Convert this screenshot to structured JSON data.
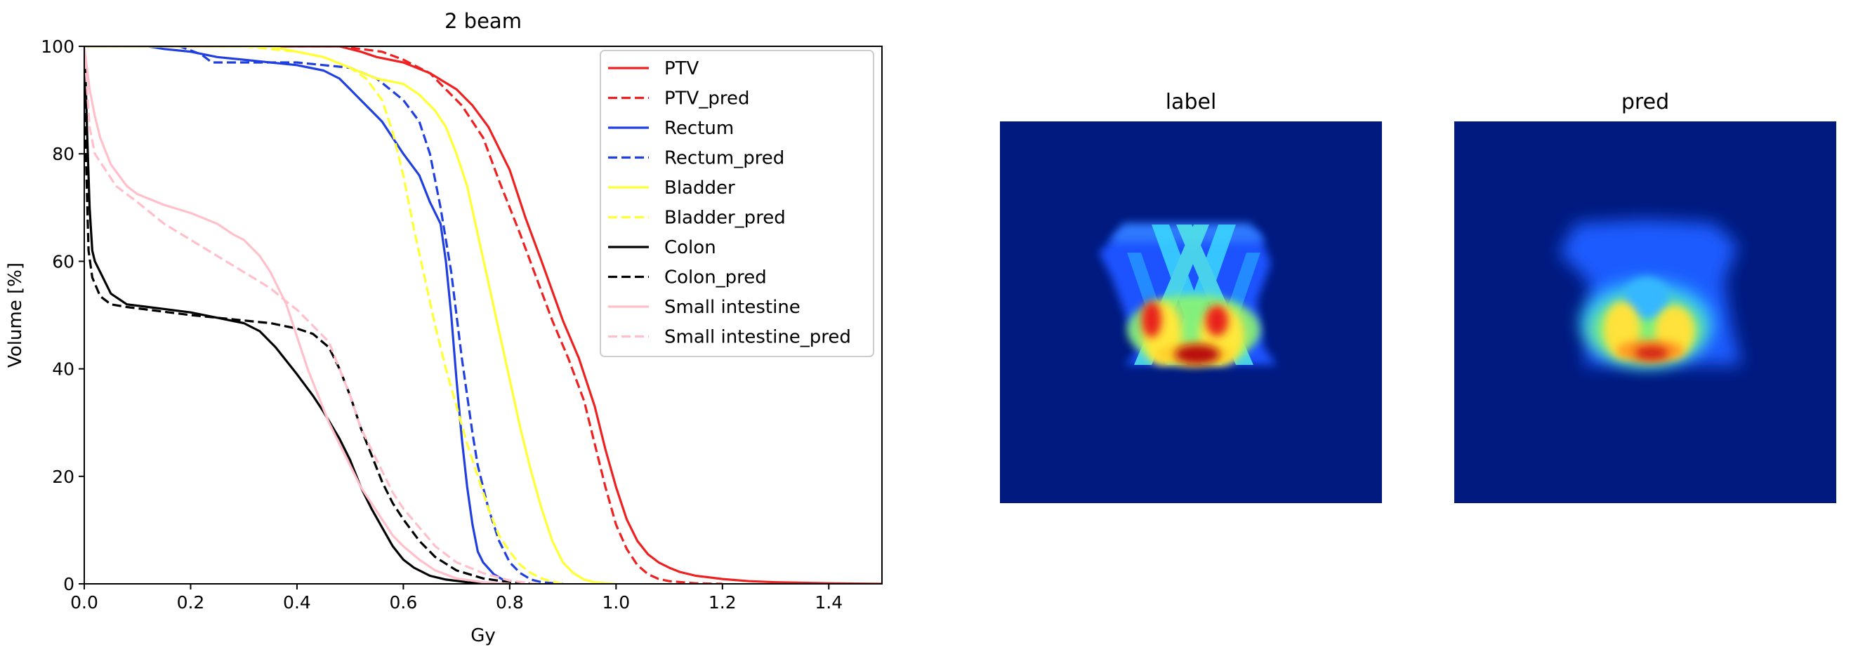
{
  "chart_data": [
    {
      "type": "line",
      "title": "2 beam",
      "xlabel": "Gy",
      "ylabel": "Volume [%]",
      "xlim": [
        0.0,
        1.5
      ],
      "ylim": [
        0,
        100
      ],
      "xticks": [
        "0.0",
        "0.2",
        "0.4",
        "0.6",
        "0.8",
        "1.0",
        "1.2",
        "1.4"
      ],
      "yticks": [
        "0",
        "20",
        "40",
        "60",
        "80",
        "100"
      ],
      "grid": false,
      "legend_position": "top-right",
      "series": [
        {
          "name": "PTV",
          "color": "#ee2020",
          "dash": "solid",
          "x": [
            0,
            0.48,
            0.52,
            0.55,
            0.6,
            0.65,
            0.7,
            0.73,
            0.76,
            0.8,
            0.83,
            0.86,
            0.9,
            0.93,
            0.96,
            0.98,
            1.0,
            1.02,
            1.04,
            1.06,
            1.08,
            1.1,
            1.12,
            1.15,
            1.2,
            1.25,
            1.3,
            1.4,
            1.5
          ],
          "y": [
            100,
            100,
            99,
            98,
            97,
            95,
            92,
            89,
            85,
            77,
            68,
            60,
            49,
            42,
            33,
            25,
            18,
            12,
            8,
            5.5,
            4,
            3,
            2.2,
            1.5,
            0.9,
            0.5,
            0.3,
            0.1,
            0
          ]
        },
        {
          "name": "PTV_pred",
          "color": "#ee2020",
          "dash": "dashed",
          "x": [
            0,
            0.48,
            0.52,
            0.56,
            0.6,
            0.65,
            0.68,
            0.71,
            0.75,
            0.78,
            0.82,
            0.85,
            0.88,
            0.91,
            0.94,
            0.96,
            0.98,
            1.0,
            1.02,
            1.04,
            1.06,
            1.08,
            1.1,
            1.15,
            1.2
          ],
          "y": [
            100,
            100,
            99.5,
            99,
            97.5,
            95,
            92,
            89,
            83,
            75,
            65,
            57,
            49,
            42,
            34,
            26,
            18,
            11,
            6.5,
            3.5,
            1.8,
            0.9,
            0.5,
            0.1,
            0
          ]
        },
        {
          "name": "Rectum",
          "color": "#1f3fe0",
          "dash": "solid",
          "x": [
            0,
            0.12,
            0.15,
            0.2,
            0.25,
            0.3,
            0.35,
            0.4,
            0.45,
            0.48,
            0.5,
            0.53,
            0.56,
            0.6,
            0.63,
            0.65,
            0.67,
            0.68,
            0.69,
            0.7,
            0.71,
            0.72,
            0.73,
            0.74,
            0.75,
            0.77,
            0.8
          ],
          "y": [
            100,
            100,
            99.5,
            99,
            98,
            97.5,
            97,
            96.5,
            95.5,
            94,
            92,
            89,
            86,
            80,
            76,
            71,
            67,
            60,
            50,
            38,
            27,
            18,
            11,
            6,
            4,
            1.8,
            0
          ]
        },
        {
          "name": "Rectum_pred",
          "color": "#1f3fe0",
          "dash": "dashed",
          "x": [
            0,
            0.18,
            0.22,
            0.24,
            0.3,
            0.4,
            0.45,
            0.5,
            0.55,
            0.6,
            0.63,
            0.65,
            0.67,
            0.69,
            0.7,
            0.71,
            0.72,
            0.73,
            0.74,
            0.76,
            0.78,
            0.8,
            0.82,
            0.84,
            0.86,
            0.9
          ],
          "y": [
            100,
            100,
            98.5,
            97,
            97,
            97,
            96.5,
            96,
            94,
            90,
            86,
            80,
            70,
            58,
            50,
            42,
            35,
            28,
            22,
            14,
            8,
            4,
            2,
            0.8,
            0.3,
            0
          ]
        },
        {
          "name": "Bladder",
          "color": "#ffff33",
          "dash": "solid",
          "x": [
            0,
            0.35,
            0.4,
            0.45,
            0.5,
            0.55,
            0.6,
            0.63,
            0.66,
            0.68,
            0.7,
            0.72,
            0.74,
            0.76,
            0.78,
            0.8,
            0.82,
            0.84,
            0.86,
            0.88,
            0.9,
            0.92,
            0.94,
            0.96,
            1.0
          ],
          "y": [
            100,
            100,
            99,
            98,
            96,
            94,
            93,
            91,
            88,
            85,
            80,
            74,
            65,
            56,
            47,
            38,
            29,
            21,
            14,
            8,
            4,
            2,
            0.8,
            0.3,
            0
          ]
        },
        {
          "name": "Bladder_pred",
          "color": "#ffff33",
          "dash": "dashed",
          "x": [
            0,
            0.3,
            0.4,
            0.45,
            0.5,
            0.53,
            0.56,
            0.58,
            0.6,
            0.62,
            0.64,
            0.66,
            0.68,
            0.7,
            0.72,
            0.74,
            0.76,
            0.78,
            0.8,
            0.82,
            0.84,
            0.86,
            0.88,
            0.9
          ],
          "y": [
            100,
            100,
            99,
            98,
            96,
            94,
            90,
            84,
            76,
            66,
            57,
            48,
            40,
            33,
            26,
            20,
            14,
            9,
            6,
            3.5,
            2,
            1,
            0.4,
            0
          ]
        },
        {
          "name": "Colon",
          "color": "#000000",
          "dash": "solid",
          "x": [
            0,
            0.002,
            0.005,
            0.01,
            0.015,
            0.02,
            0.03,
            0.05,
            0.08,
            0.12,
            0.16,
            0.2,
            0.25,
            0.3,
            0.33,
            0.36,
            0.4,
            0.43,
            0.45,
            0.48,
            0.5,
            0.52,
            0.54,
            0.56,
            0.58,
            0.6,
            0.62,
            0.65,
            0.68,
            0.72,
            0.78,
            0.8
          ],
          "y": [
            100,
            96,
            85,
            70,
            62,
            60,
            58,
            54,
            52,
            51.5,
            51,
            50.5,
            49.5,
            48.5,
            47,
            44,
            39,
            35,
            32,
            27,
            23,
            18,
            14,
            10.5,
            7,
            4.5,
            3,
            1.5,
            0.8,
            0.3,
            0.05,
            0
          ]
        },
        {
          "name": "Colon_pred",
          "color": "#000000",
          "dash": "dashed",
          "x": [
            0,
            0.003,
            0.008,
            0.015,
            0.03,
            0.05,
            0.08,
            0.12,
            0.16,
            0.2,
            0.25,
            0.3,
            0.35,
            0.4,
            0.43,
            0.46,
            0.48,
            0.5,
            0.52,
            0.54,
            0.56,
            0.58,
            0.6,
            0.63,
            0.66,
            0.7,
            0.75,
            0.8,
            0.85
          ],
          "y": [
            100,
            80,
            62,
            57,
            53.5,
            52,
            51.5,
            51,
            50.5,
            50,
            49.5,
            49,
            48.5,
            47.5,
            46.5,
            44,
            40,
            35,
            29,
            24,
            19,
            15,
            12,
            8,
            5,
            2.5,
            1,
            0.3,
            0
          ]
        },
        {
          "name": "Small intestine",
          "color": "#ffc0cb",
          "dash": "solid",
          "x": [
            0,
            0.01,
            0.02,
            0.03,
            0.05,
            0.08,
            0.1,
            0.15,
            0.2,
            0.25,
            0.28,
            0.3,
            0.33,
            0.35,
            0.38,
            0.4,
            0.42,
            0.44,
            0.46,
            0.48,
            0.5,
            0.52,
            0.54,
            0.56,
            0.58,
            0.6,
            0.63,
            0.66,
            0.7,
            0.75,
            0.8
          ],
          "y": [
            100,
            92,
            87,
            83,
            78,
            74,
            72.5,
            70.5,
            69,
            67,
            65,
            64,
            61,
            58,
            52,
            46,
            40,
            35,
            30,
            26,
            22,
            18,
            15,
            12,
            9,
            7,
            4.5,
            2.5,
            1,
            0.3,
            0
          ]
        },
        {
          "name": "Small intestine_pred",
          "color": "#ffc0cb",
          "dash": "dashed",
          "x": [
            0,
            0.01,
            0.02,
            0.04,
            0.06,
            0.1,
            0.15,
            0.2,
            0.25,
            0.3,
            0.35,
            0.38,
            0.4,
            0.43,
            0.46,
            0.48,
            0.5,
            0.52,
            0.54,
            0.56,
            0.58,
            0.6,
            0.63,
            0.66,
            0.7,
            0.75,
            0.8,
            0.85
          ],
          "y": [
            100,
            85,
            80,
            77,
            74,
            71,
            67,
            64,
            61,
            58,
            55,
            52.5,
            51,
            48,
            45,
            40,
            35,
            29,
            25,
            21,
            17,
            14,
            10.5,
            7,
            4,
            2,
            0.6,
            0
          ]
        }
      ]
    },
    {
      "type": "heatmap",
      "title": "label",
      "colormap": "jet"
    },
    {
      "type": "heatmap",
      "title": "pred",
      "colormap": "jet"
    }
  ]
}
